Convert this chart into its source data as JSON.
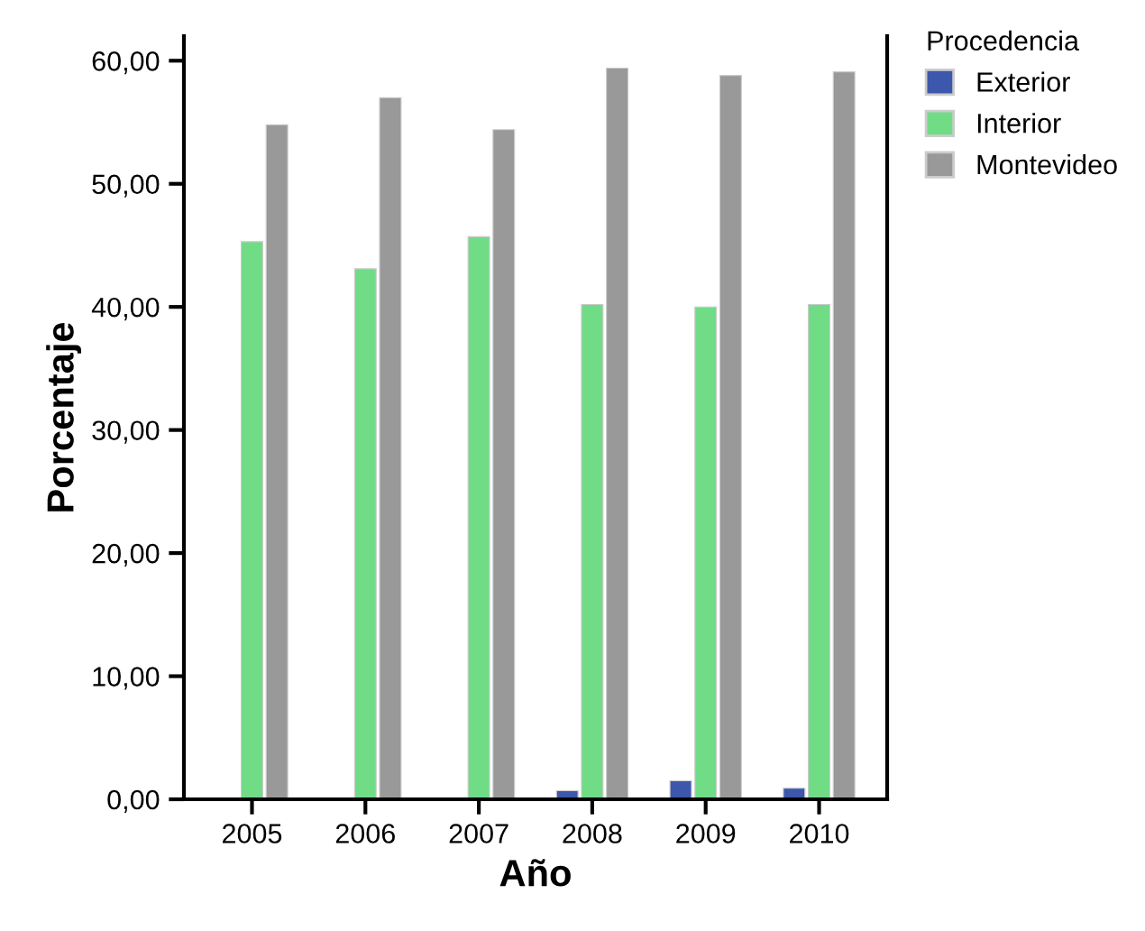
{
  "chart_data": {
    "type": "bar",
    "xlabel": "Año",
    "ylabel": "Porcentaje",
    "legend_title": "Procedencia",
    "legend": "top right",
    "categories": [
      "2005",
      "2006",
      "2007",
      "2008",
      "2009",
      "2010"
    ],
    "series": [
      {
        "name": "Exterior",
        "color": "#3d57ad",
        "values": [
          null,
          null,
          null,
          0.7,
          1.5,
          0.9
        ]
      },
      {
        "name": "Interior",
        "color": "#70dc86",
        "values": [
          45.3,
          43.1,
          45.7,
          40.2,
          40.0,
          40.2
        ]
      },
      {
        "name": "Montevideo",
        "color": "#999999",
        "values": [
          54.8,
          57.0,
          54.4,
          59.4,
          58.8,
          59.1
        ]
      }
    ],
    "ylim": [
      0,
      62
    ],
    "yticks": [
      {
        "value": 0,
        "label": "0,00"
      },
      {
        "value": 10,
        "label": "10,00"
      },
      {
        "value": 20,
        "label": "20,00"
      },
      {
        "value": 30,
        "label": "30,00"
      },
      {
        "value": 40,
        "label": "40,00"
      },
      {
        "value": 50,
        "label": "50,00"
      },
      {
        "value": 60,
        "label": "60,00"
      }
    ],
    "grid": false
  }
}
